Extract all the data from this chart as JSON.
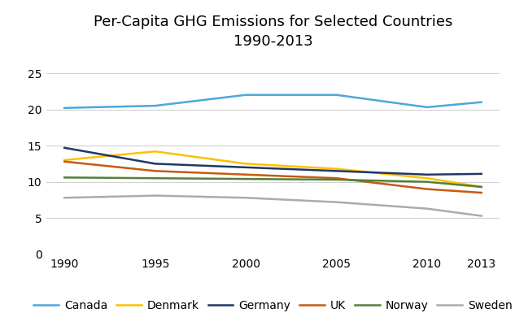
{
  "title": "Per-Capita GHG Emissions for Selected Countries\n1990-2013",
  "years": [
    1990,
    1995,
    2000,
    2005,
    2010,
    2013
  ],
  "series": {
    "Canada": [
      20.2,
      20.5,
      22.0,
      22.0,
      20.3,
      21.0
    ],
    "Denmark": [
      13.0,
      14.2,
      12.5,
      11.8,
      10.5,
      9.3
    ],
    "Germany": [
      14.7,
      12.5,
      12.0,
      11.5,
      11.0,
      11.1
    ],
    "UK": [
      12.8,
      11.5,
      11.0,
      10.5,
      9.0,
      8.5
    ],
    "Norway": [
      10.6,
      10.5,
      10.4,
      10.3,
      10.0,
      9.3
    ],
    "Sweden": [
      7.8,
      8.1,
      7.8,
      7.2,
      6.3,
      5.3
    ]
  },
  "colors": {
    "Canada": "#4EA6DC",
    "Denmark": "#FFC000",
    "Germany": "#203864",
    "UK": "#C55A11",
    "Norway": "#538135",
    "Sweden": "#AEAAAA"
  },
  "ylim": [
    0,
    27
  ],
  "yticks": [
    0,
    5,
    10,
    15,
    20,
    25
  ],
  "legend_order": [
    "Canada",
    "Denmark",
    "Germany",
    "UK",
    "Norway",
    "Sweden"
  ],
  "background_color": "#FFFFFF",
  "grid_color": "#D0D0D0",
  "title_fontsize": 13,
  "tick_fontsize": 10,
  "legend_fontsize": 10,
  "line_width": 1.8
}
